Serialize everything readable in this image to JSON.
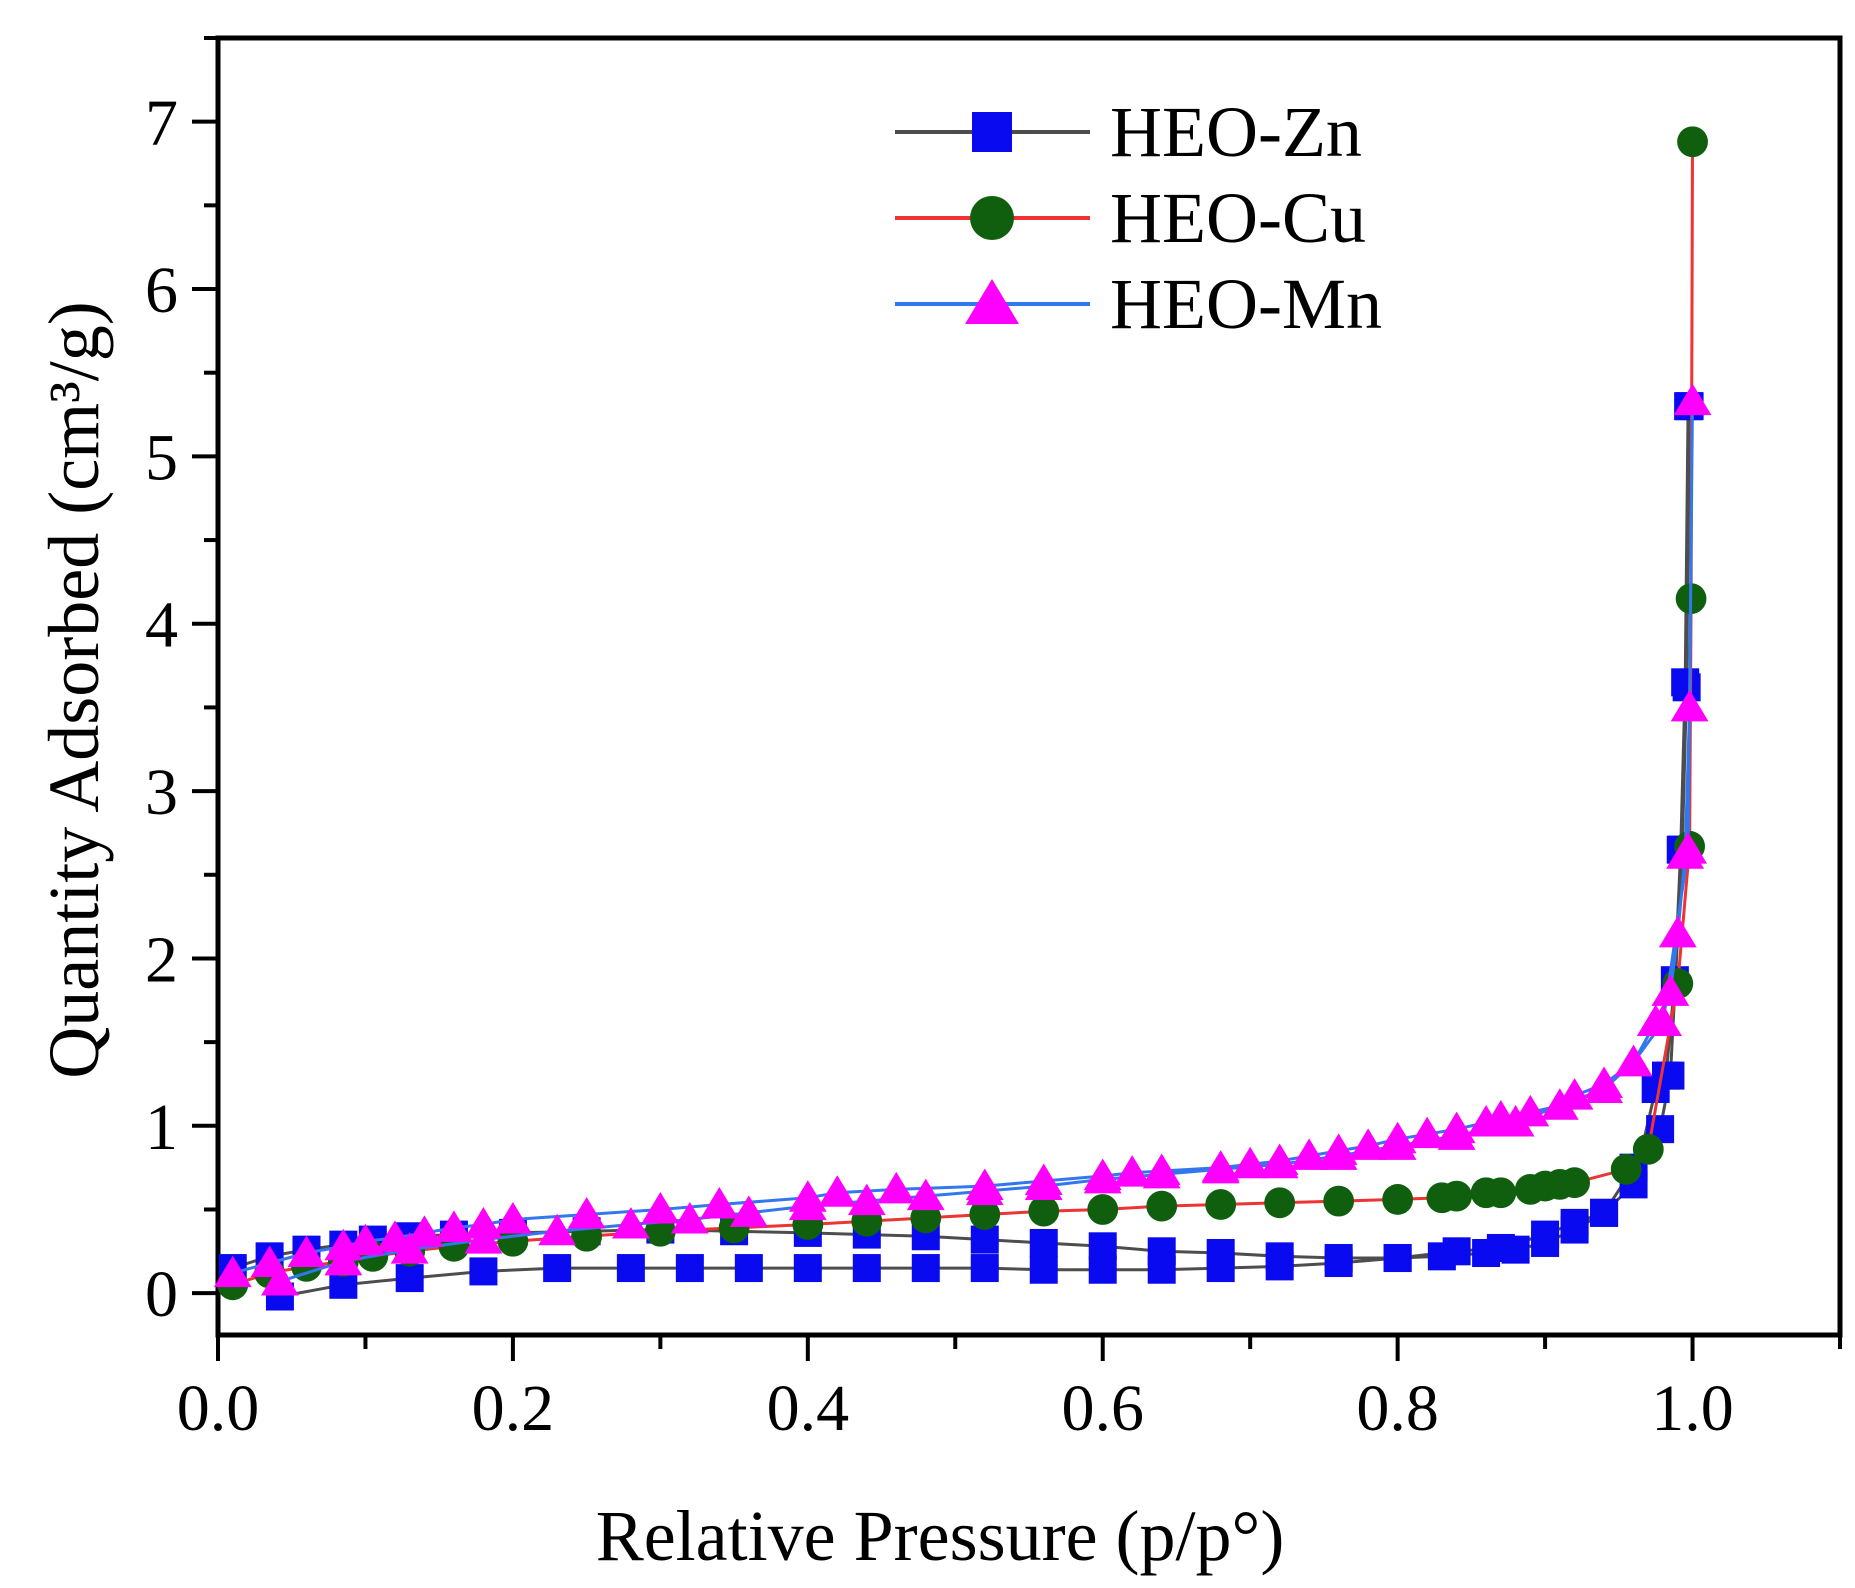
{
  "chart_data": {
    "type": "line",
    "title": "",
    "xlabel": "Relative Pressure (p/p°)",
    "ylabel": "Quantity Adsorbed (cm³/g)",
    "xlim": [
      0,
      1.1
    ],
    "ylim": [
      -0.25,
      7.5
    ],
    "xticks": [
      0,
      0.2,
      0.4,
      0.6,
      0.8,
      1.0
    ],
    "xtick_labels": [
      "0.0",
      "0.2",
      "0.4",
      "0.6",
      "0.8",
      "1.0"
    ],
    "yticks": [
      0,
      1,
      2,
      3,
      4,
      5,
      6,
      7
    ],
    "ytick_labels": [
      "0",
      "1",
      "2",
      "3",
      "4",
      "5",
      "6",
      "7"
    ],
    "grid": false,
    "legend_position": "top-right",
    "series": [
      {
        "name": "HEO-Zn",
        "line_color": "#4d4d4d",
        "marker_color": "#0a0af0",
        "marker": "square",
        "x": [
          0.01,
          0.035,
          0.06,
          0.085,
          0.105,
          0.13,
          0.16,
          0.2,
          0.25,
          0.3,
          0.35,
          0.4,
          0.44,
          0.48,
          0.52,
          0.56,
          0.6,
          0.64,
          0.68,
          0.72,
          0.76,
          0.8,
          0.83,
          0.86,
          0.88,
          0.9,
          0.92,
          0.94,
          0.96,
          0.975,
          0.982,
          0.988,
          0.992,
          0.995,
          0.997,
          0.998,
          0.996,
          0.993,
          0.985,
          0.978,
          0.96,
          0.94,
          0.92,
          0.9,
          0.87,
          0.84,
          0.8,
          0.76,
          0.72,
          0.68,
          0.64,
          0.6,
          0.56,
          0.52,
          0.48,
          0.44,
          0.4,
          0.36,
          0.32,
          0.28,
          0.23,
          0.18,
          0.13,
          0.085,
          0.042
        ],
        "y": [
          0.15,
          0.22,
          0.26,
          0.29,
          0.32,
          0.34,
          0.35,
          0.36,
          0.37,
          0.38,
          0.37,
          0.36,
          0.35,
          0.34,
          0.32,
          0.3,
          0.28,
          0.25,
          0.24,
          0.22,
          0.21,
          0.21,
          0.22,
          0.24,
          0.26,
          0.3,
          0.38,
          0.48,
          0.65,
          1.22,
          1.3,
          1.87,
          2.65,
          3.65,
          5.3,
          5.3,
          3.62,
          2.65,
          1.3,
          0.98,
          0.75,
          0.48,
          0.42,
          0.35,
          0.27,
          0.25,
          0.21,
          0.18,
          0.16,
          0.15,
          0.14,
          0.14,
          0.14,
          0.15,
          0.15,
          0.15,
          0.15,
          0.15,
          0.15,
          0.15,
          0.15,
          0.13,
          0.09,
          0.05,
          -0.02
        ]
      },
      {
        "name": "HEO-Cu",
        "line_color": "#ee3333",
        "marker_color": "#0f5f0f",
        "marker": "circle",
        "x": [
          0.01,
          0.035,
          0.06,
          0.085,
          0.105,
          0.13,
          0.16,
          0.2,
          0.25,
          0.3,
          0.35,
          0.4,
          0.44,
          0.48,
          0.52,
          0.56,
          0.6,
          0.64,
          0.68,
          0.72,
          0.76,
          0.8,
          0.83,
          0.84,
          0.86,
          0.87,
          0.89,
          0.9,
          0.91,
          0.92,
          0.955,
          0.97,
          0.99,
          0.998,
          0.999,
          1.0
        ],
        "y": [
          0.05,
          0.12,
          0.16,
          0.19,
          0.22,
          0.25,
          0.28,
          0.31,
          0.34,
          0.37,
          0.39,
          0.41,
          0.43,
          0.45,
          0.47,
          0.49,
          0.5,
          0.52,
          0.53,
          0.54,
          0.55,
          0.56,
          0.57,
          0.58,
          0.6,
          0.6,
          0.62,
          0.64,
          0.65,
          0.66,
          0.74,
          0.86,
          1.85,
          2.67,
          4.15,
          6.88
        ]
      },
      {
        "name": "HEO-Mn",
        "line_color": "#3377ee",
        "marker_color": "#ff00ff",
        "marker": "triangle",
        "x": [
          0.01,
          0.035,
          0.06,
          0.085,
          0.1,
          0.12,
          0.14,
          0.16,
          0.18,
          0.2,
          0.25,
          0.3,
          0.34,
          0.4,
          0.42,
          0.46,
          0.52,
          0.56,
          0.6,
          0.62,
          0.64,
          0.68,
          0.7,
          0.72,
          0.74,
          0.76,
          0.78,
          0.8,
          0.82,
          0.84,
          0.86,
          0.87,
          0.89,
          0.91,
          0.92,
          0.94,
          0.96,
          0.975,
          0.985,
          0.99,
          0.995,
          0.998,
          1.0,
          0.997,
          0.98,
          0.96,
          0.94,
          0.88,
          0.84,
          0.8,
          0.76,
          0.72,
          0.68,
          0.64,
          0.6,
          0.56,
          0.52,
          0.48,
          0.44,
          0.4,
          0.36,
          0.32,
          0.28,
          0.23,
          0.18,
          0.13,
          0.085,
          0.042
        ],
        "y": [
          0.12,
          0.18,
          0.24,
          0.28,
          0.31,
          0.33,
          0.36,
          0.39,
          0.41,
          0.44,
          0.47,
          0.5,
          0.53,
          0.57,
          0.6,
          0.62,
          0.64,
          0.67,
          0.7,
          0.72,
          0.73,
          0.75,
          0.77,
          0.79,
          0.82,
          0.85,
          0.88,
          0.92,
          0.95,
          0.98,
          1.02,
          1.05,
          1.08,
          1.12,
          1.18,
          1.25,
          1.38,
          1.62,
          1.8,
          2.15,
          2.62,
          3.5,
          5.33,
          2.65,
          1.62,
          1.38,
          1.22,
          1.02,
          0.94,
          0.88,
          0.82,
          0.77,
          0.74,
          0.71,
          0.68,
          0.64,
          0.61,
          0.58,
          0.55,
          0.52,
          0.48,
          0.44,
          0.41,
          0.37,
          0.32,
          0.26,
          0.19,
          0.07
        ]
      }
    ]
  }
}
